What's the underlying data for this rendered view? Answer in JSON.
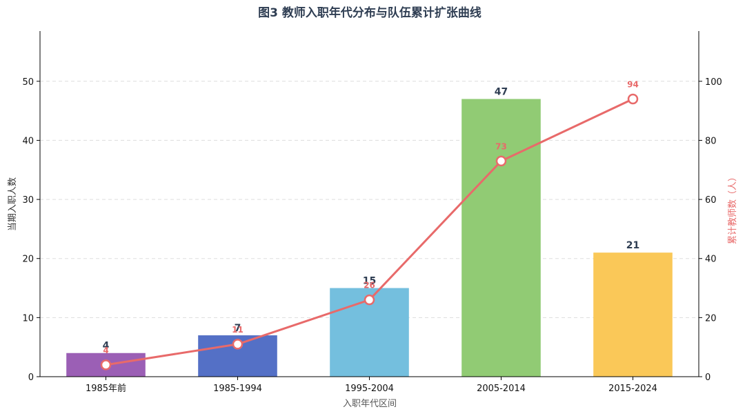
{
  "chart_data": {
    "type": "bar",
    "title": "图3 教师入职年代分布与队伍累计扩张曲线",
    "xlabel": "入职年代区间",
    "ylabel": "当期入职人数",
    "y2label": "累计教师数（人）",
    "categories": [
      "1985年前",
      "1985-1994",
      "1995-2004",
      "2005-2014",
      "2015-2024"
    ],
    "series": [
      {
        "type": "bar",
        "values": [
          4,
          7,
          15,
          47,
          21
        ],
        "colors": [
          "#9b5fb5",
          "#5470c6",
          "#74bfde",
          "#91cb74",
          "#fac858"
        ]
      },
      {
        "type": "line",
        "axis": "right",
        "values": [
          4,
          11,
          26,
          73,
          94
        ],
        "color": "#e86a6a"
      }
    ],
    "ylim": [
      0,
      58.5
    ],
    "y2lim": [
      0,
      117
    ],
    "yticks": [
      0,
      10,
      20,
      30,
      40,
      50
    ],
    "y2ticks": [
      0,
      20,
      40,
      60,
      80,
      100
    ],
    "grid": true
  }
}
